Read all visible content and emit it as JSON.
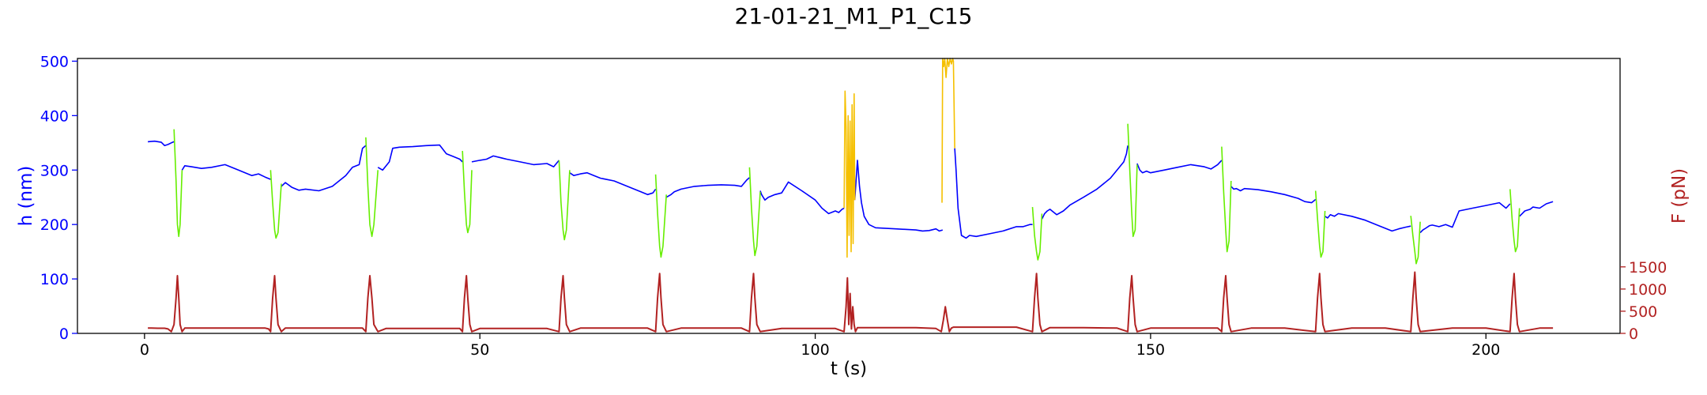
{
  "chart_data": {
    "type": "line",
    "title": "21-01-21_M1_P1_C15",
    "xlabel": "t (s)",
    "ylabel_left": "h (nm)",
    "ylabel_right": "F (pN)",
    "xlim": [
      -10,
      220
    ],
    "ylim_left": [
      0,
      505
    ],
    "ylim_right": [
      0,
      6200
    ],
    "xticks": [
      0,
      50,
      100,
      150,
      200
    ],
    "yticks_left": [
      0,
      100,
      200,
      300,
      400,
      500
    ],
    "yticks_right": [
      0,
      500,
      1000,
      1500
    ],
    "grid": false,
    "colors": {
      "h_baseline": "#0000ff",
      "h_compression": "#66ee00",
      "h_yellow": "#f5c000",
      "force": "#b22222",
      "left_axis": "#0000ff",
      "right_axis": "#b22222"
    },
    "series": [
      {
        "axis": "left",
        "color": "#0000ff",
        "x": [
          0.5,
          1.5,
          2.5,
          3.0,
          3.5,
          4.0,
          4.4,
          null,
          5.6,
          6.0,
          7.0,
          8.5,
          10,
          12,
          14,
          16,
          17,
          18,
          18.8,
          null,
          20.4,
          21,
          22,
          23,
          24,
          26,
          28,
          30,
          31,
          32,
          32.5,
          33,
          null,
          34.8,
          35.5,
          36.5,
          37,
          38,
          40,
          42,
          44,
          45,
          46,
          47,
          47.4,
          null,
          48.8,
          50,
          51,
          52,
          54,
          56,
          58,
          60,
          61,
          61.8,
          null,
          63.4,
          64,
          65,
          66,
          67,
          68,
          70,
          72,
          74,
          75,
          75.8,
          76.2,
          null,
          77.8,
          78.5,
          79,
          80,
          82,
          84,
          86,
          88,
          89,
          89.8,
          90.2,
          null,
          91.8,
          92,
          92.5,
          93,
          94,
          95,
          96,
          98,
          100,
          101,
          102,
          103,
          103.5,
          104,
          104.3,
          null,
          105.9,
          106.3,
          106.6,
          106.9,
          107.3,
          108,
          109,
          112,
          115,
          116,
          117,
          118,
          118.5,
          119.0,
          null,
          120.8,
          121.0,
          121.3,
          121.8,
          122.5,
          123,
          124,
          126,
          128,
          130,
          131,
          132,
          132.4,
          null,
          133.8,
          134.2,
          134.6,
          135,
          136,
          137,
          138,
          140,
          142,
          144,
          145,
          146,
          146.4,
          146.6,
          null,
          148.0,
          148.4,
          148.8,
          149.4,
          150,
          152,
          154,
          156,
          158,
          159,
          160,
          160.6,
          null,
          162.0,
          162.4,
          162.8,
          163.4,
          164,
          166,
          168,
          170,
          172,
          173,
          174,
          174.6,
          null,
          176.0,
          176.4,
          176.8,
          177.4,
          178,
          180,
          182,
          184,
          186,
          187,
          188,
          188.8,
          null,
          190.2,
          190.6,
          191,
          191.6,
          192,
          193,
          194,
          195,
          196,
          198,
          200,
          202,
          203,
          203.6,
          null,
          205.0,
          205.4,
          205.8,
          206.6,
          207,
          208,
          209,
          210
        ],
        "y": [
          352,
          353,
          351,
          345,
          347,
          350,
          352,
          null,
          300,
          308,
          306,
          303,
          305,
          310,
          300,
          290,
          293,
          287,
          283,
          null,
          270,
          277,
          268,
          263,
          265,
          262,
          270,
          290,
          305,
          310,
          340,
          345,
          null,
          305,
          300,
          315,
          340,
          342,
          343,
          345,
          346,
          330,
          325,
          320,
          315,
          null,
          315,
          318,
          320,
          326,
          320,
          315,
          310,
          312,
          306,
          318,
          null,
          295,
          290,
          293,
          295,
          290,
          285,
          280,
          270,
          260,
          255,
          258,
          265,
          null,
          250,
          255,
          260,
          265,
          270,
          272,
          273,
          272,
          270,
          282,
          286,
          null,
          262,
          255,
          245,
          250,
          255,
          258,
          278,
          262,
          245,
          230,
          220,
          225,
          222,
          228,
          230,
          null,
          245,
          318,
          270,
          240,
          215,
          200,
          194,
          192,
          190,
          188,
          189,
          192,
          188,
          190,
          null,
          340,
          300,
          230,
          180,
          175,
          180,
          178,
          183,
          188,
          196,
          196,
          200,
          200,
          null,
          210,
          220,
          225,
          228,
          218,
          225,
          236,
          250,
          265,
          285,
          300,
          315,
          330,
          345,
          null,
          312,
          300,
          295,
          298,
          295,
          300,
          305,
          310,
          306,
          302,
          310,
          318,
          null,
          270,
          265,
          266,
          262,
          266,
          264,
          260,
          255,
          248,
          242,
          240,
          246,
          null,
          215,
          212,
          218,
          215,
          220,
          215,
          208,
          198,
          188,
          192,
          195,
          197,
          null,
          185,
          190,
          193,
          198,
          199,
          196,
          200,
          195,
          225,
          230,
          235,
          240,
          230,
          238,
          null,
          215,
          220,
          225,
          228,
          232,
          230,
          238,
          242
        ]
      },
      {
        "axis": "left",
        "color": "#66ee00",
        "x": [
          4.4,
          4.7,
          4.9,
          5.1,
          5.3,
          5.6,
          null,
          18.8,
          19.1,
          19.4,
          19.6,
          19.9,
          20.4,
          null,
          33.0,
          33.3,
          33.6,
          33.9,
          34.2,
          34.8,
          null,
          47.4,
          47.7,
          48.0,
          48.2,
          48.5,
          48.8,
          null,
          61.8,
          62.1,
          62.4,
          62.6,
          62.9,
          63.4,
          null,
          76.2,
          76.5,
          76.8,
          77.0,
          77.3,
          77.8,
          null,
          90.2,
          90.5,
          90.8,
          91.0,
          91.3,
          91.8,
          null,
          132.4,
          132.7,
          133.0,
          133.2,
          133.5,
          133.8,
          null,
          146.6,
          146.9,
          147.2,
          147.4,
          147.7,
          148.0,
          null,
          160.6,
          160.9,
          161.2,
          161.4,
          161.7,
          162.0,
          null,
          174.6,
          174.9,
          175.2,
          175.4,
          175.7,
          176.0,
          null,
          188.8,
          189.1,
          189.4,
          189.6,
          189.9,
          190.2,
          null,
          203.6,
          203.9,
          204.2,
          204.4,
          204.7,
          205.0
        ],
        "y": [
          375,
          280,
          200,
          178,
          200,
          300,
          null,
          300,
          240,
          190,
          175,
          185,
          275,
          null,
          360,
          270,
          200,
          178,
          200,
          300,
          null,
          335,
          260,
          200,
          185,
          200,
          300,
          null,
          318,
          240,
          190,
          172,
          190,
          300,
          null,
          292,
          220,
          160,
          140,
          160,
          255,
          null,
          305,
          230,
          170,
          143,
          160,
          260,
          null,
          232,
          180,
          150,
          135,
          150,
          220,
          null,
          385,
          300,
          220,
          178,
          190,
          310,
          null,
          343,
          260,
          190,
          150,
          170,
          280,
          null,
          262,
          210,
          160,
          140,
          150,
          225,
          null,
          216,
          180,
          150,
          128,
          140,
          205,
          null,
          265,
          210,
          170,
          150,
          160,
          230
        ]
      },
      {
        "axis": "left",
        "color": "#f5c000",
        "x": [
          104.3,
          104.45,
          104.6,
          104.75,
          104.9,
          105.05,
          105.2,
          105.35,
          105.5,
          105.65,
          105.8,
          105.9,
          null,
          118.9,
          119.0,
          119.15,
          119.3,
          119.5,
          119.7,
          119.9,
          120.1,
          120.3,
          120.5,
          120.6,
          120.8
        ],
        "y": [
          230,
          445,
          380,
          140,
          400,
          180,
          390,
          150,
          420,
          165,
          440,
          245,
          null,
          240,
          505,
          490,
          505,
          470,
          505,
          490,
          505,
          495,
          505,
          500,
          340
        ]
      },
      {
        "axis": "right",
        "color": "#b22222",
        "x": [
          0.5,
          1,
          2,
          3,
          3.5,
          4,
          4.4,
          4.7,
          4.9,
          5.1,
          5.3,
          5.6,
          6,
          8,
          10,
          12,
          14,
          16,
          18,
          18.5,
          18.8,
          19.1,
          19.4,
          19.6,
          19.9,
          20.4,
          21,
          25,
          30,
          32,
          32.5,
          33,
          33.3,
          33.6,
          33.9,
          34.2,
          34.8,
          36,
          40,
          45,
          47,
          47.4,
          47.7,
          48,
          48.2,
          48.5,
          48.8,
          50,
          55,
          60,
          61.8,
          62.1,
          62.4,
          62.6,
          62.9,
          63.4,
          65,
          70,
          75,
          76.2,
          76.5,
          76.8,
          77,
          77.3,
          77.8,
          80,
          85,
          89,
          90.2,
          90.5,
          90.8,
          91,
          91.3,
          91.8,
          95,
          100,
          103,
          104.3,
          104.6,
          104.8,
          105,
          105.2,
          105.4,
          105.6,
          105.8,
          106,
          106.3,
          106.6,
          107,
          110,
          115,
          118,
          118.8,
          119.1,
          119.4,
          119.7,
          120.0,
          120.3,
          120.6,
          121,
          125,
          130,
          132.4,
          132.7,
          133,
          133.2,
          133.5,
          133.8,
          135,
          140,
          145,
          146.6,
          146.9,
          147.2,
          147.4,
          147.7,
          148,
          150,
          155,
          160,
          160.6,
          160.9,
          161.2,
          161.4,
          161.7,
          162,
          165,
          170,
          174.6,
          174.9,
          175.2,
          175.4,
          175.7,
          176,
          180,
          185,
          188.8,
          189.1,
          189.4,
          189.6,
          189.9,
          190.2,
          195,
          200,
          203.6,
          203.9,
          204.2,
          204.4,
          204.7,
          205,
          208,
          210
        ],
        "y": [
          120,
          120,
          115,
          115,
          100,
          40,
          200,
          800,
          1300,
          800,
          200,
          40,
          120,
          120,
          120,
          120,
          120,
          120,
          120,
          100,
          40,
          800,
          1300,
          800,
          200,
          40,
          120,
          120,
          120,
          120,
          120,
          40,
          800,
          1300,
          800,
          200,
          40,
          110,
          110,
          110,
          110,
          40,
          800,
          1300,
          800,
          200,
          40,
          110,
          110,
          110,
          40,
          800,
          1300,
          800,
          200,
          40,
          120,
          120,
          120,
          40,
          800,
          1350,
          800,
          200,
          40,
          120,
          120,
          120,
          40,
          800,
          1350,
          800,
          200,
          40,
          110,
          110,
          110,
          40,
          600,
          1250,
          200,
          900,
          100,
          600,
          200,
          40,
          130,
          130,
          130,
          130,
          130,
          110,
          40,
          300,
          600,
          300,
          40,
          120,
          140,
          140,
          140,
          140,
          40,
          800,
          1350,
          800,
          200,
          40,
          130,
          130,
          120,
          40,
          800,
          1300,
          800,
          200,
          40,
          120,
          120,
          120,
          40,
          800,
          1300,
          800,
          200,
          40,
          120,
          120,
          40,
          800,
          1350,
          800,
          200,
          40,
          120,
          120,
          40,
          800,
          1380,
          800,
          200,
          40,
          120,
          120,
          40,
          800,
          1350,
          800,
          200,
          40,
          120,
          120
        ]
      }
    ]
  }
}
